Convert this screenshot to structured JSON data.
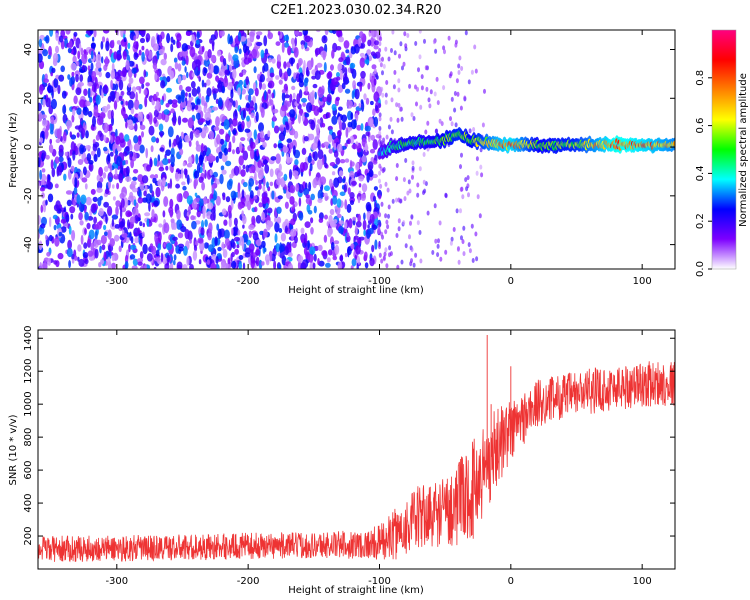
{
  "figure_title": "C2E1.2023.030.02.34.R20",
  "chart_data": [
    {
      "type": "heatmap",
      "title": "",
      "xlabel": "Height of straight line (km)",
      "ylabel": "Frequency (Hz)",
      "xlim": [
        -360,
        125
      ],
      "ylim": [
        -50,
        48
      ],
      "x_ticks": [
        -300,
        -200,
        -100,
        0,
        100
      ],
      "y_ticks": [
        -40,
        -20,
        0,
        20,
        40
      ],
      "colorbar": {
        "label": "Normalized spectral amplitude",
        "range": [
          0,
          1
        ],
        "ticks": [
          0.0,
          0.2,
          0.4,
          0.6,
          0.8
        ],
        "colors": [
          "#ffffff",
          "#7d00ff",
          "#0000ff",
          "#00ffff",
          "#00ff00",
          "#ffff00",
          "#ff8000",
          "#ff0000",
          "#ff0080"
        ]
      },
      "noise_region_x": [
        -360,
        -100
      ],
      "signal_ridge": {
        "x": [
          -100,
          -90,
          -80,
          -70,
          -60,
          -50,
          -40,
          -30,
          -20,
          -10,
          0,
          20,
          50,
          80,
          100,
          125
        ],
        "freq_hz": [
          -3,
          0,
          1,
          2,
          2,
          3,
          5,
          3,
          2,
          1,
          1,
          1,
          1,
          1,
          1,
          1
        ],
        "amplitude": [
          0.35,
          0.45,
          0.5,
          0.5,
          0.5,
          0.55,
          0.6,
          0.55,
          0.65,
          0.75,
          0.8,
          0.55,
          0.6,
          0.85,
          0.8,
          0.7
        ]
      }
    },
    {
      "type": "line",
      "title": "",
      "xlabel": "Height of straight line (km)",
      "ylabel": "SNR (10 * v/v)",
      "xlim": [
        -360,
        125
      ],
      "ylim": [
        0,
        1450
      ],
      "x_ticks": [
        -300,
        -200,
        -100,
        0,
        100
      ],
      "y_ticks": [
        200,
        400,
        600,
        800,
        1000,
        1200,
        1400
      ],
      "series": [
        {
          "color": "#ee3333",
          "x": [
            -360,
            -300,
            -250,
            -200,
            -150,
            -110,
            -100,
            -90,
            -80,
            -70,
            -60,
            -50,
            -40,
            -30,
            -25,
            -20,
            -15,
            -10,
            -5,
            0,
            5,
            10,
            15,
            20,
            30,
            40,
            50,
            60,
            80,
            100,
            125
          ],
          "y_mean": [
            120,
            125,
            130,
            140,
            145,
            150,
            160,
            200,
            260,
            310,
            330,
            350,
            400,
            470,
            540,
            600,
            680,
            750,
            800,
            840,
            880,
            920,
            960,
            1000,
            1030,
            1050,
            1060,
            1080,
            1100,
            1120,
            1130
          ],
          "y_spread": [
            80,
            80,
            80,
            80,
            80,
            90,
            110,
            150,
            180,
            200,
            200,
            220,
            260,
            300,
            320,
            300,
            280,
            240,
            220,
            200,
            180,
            170,
            160,
            150,
            140,
            140,
            140,
            140,
            140,
            140,
            140
          ],
          "spikes": [
            [
              -18,
              1420
            ],
            [
              -15,
              1000
            ],
            [
              -5,
              920
            ],
            [
              0,
              1230
            ]
          ]
        }
      ]
    }
  ]
}
